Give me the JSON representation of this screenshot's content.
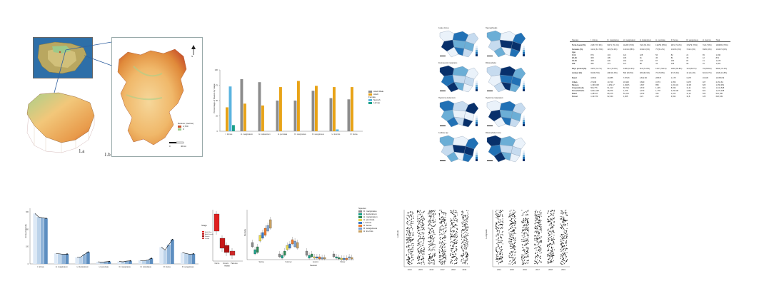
{
  "panel1": {
    "caption_a": "1.a",
    "caption_b": "1.b",
    "legend_title": "Relieve (metros)",
    "legend_high": "2,700",
    "legend_low": "0",
    "scale_zero": "0",
    "scale_unit": "40 km",
    "north": "N",
    "colors": {
      "sea": "#2e6fa8",
      "land": "#c9b36a",
      "low": "#f2c77a",
      "mid": "#e89a4a",
      "high": "#c8502a",
      "green": "#9cc98a"
    }
  },
  "panel2": {
    "ylabel": "Percentage of flowers by stage",
    "colors": {
      "adult_male": "#8c8c8c",
      "adult_female": "#e8a317",
      "nymph": "#5ab4e0",
      "larvae": "#1aa08a"
    },
    "legend": [
      "Adult Male",
      "Adult Female",
      "Nymph",
      "Larvae"
    ],
    "chart_data": {
      "type": "bar",
      "categories": [
        "I. ricinus",
        "H. marginatum",
        "H. lusitanicum",
        "H. punctata",
        "D. marginatus",
        "R. sanguineus",
        "H. inermis",
        "R. bursa"
      ],
      "series": [
        {
          "name": "Adult Male",
          "values": [
            0,
            85,
            80,
            50,
            50,
            66,
            54,
            52
          ]
        },
        {
          "name": "Adult Female",
          "values": [
            39,
            45,
            42,
            72,
            82,
            74,
            72,
            72
          ]
        },
        {
          "name": "Nymph",
          "values": [
            73,
            0,
            0,
            0,
            0,
            0,
            3,
            0
          ]
        },
        {
          "name": "Larvae",
          "values": [
            10,
            0,
            0,
            0,
            0,
            0,
            0,
            0
          ]
        }
      ],
      "ylim": [
        0,
        100
      ]
    }
  },
  "panel3": {
    "map_titles": [
      "Ixodes ricinus",
      "Haemaphysalis",
      "Dermacentor marginatus",
      "Rhipicephalus",
      "Hyalomma lusitanicum",
      "Hyalomma marginatum",
      "Ixodidae spp",
      "Rhipicephalus bursa"
    ],
    "shades": [
      "#eaf2fa",
      "#c6dbef",
      "#6baed6",
      "#2171b5",
      "#08306b"
    ]
  },
  "panel4": {
    "header": [
      "Species",
      "I. ricinus",
      "D. marginatus",
      "H. marginatum",
      "H. lusitanicum",
      "H. punctata",
      "R. bursa",
      "R. sanguineus",
      "H. inermis",
      "Total"
    ],
    "rows": [
      [
        "Ticks found (%)",
        "21/57 (67.9%)",
        "90/71 (71.1%)",
        "111/82 (70%)",
        "74/2 (61.9%)",
        "132/53 (95%)",
        "28/1 (71.3%)",
        "179/79 (79%)",
        "7/24 (70%)",
        "1009/83 (70%)"
      ],
      [
        "Females (%)",
        "111/1 (61.70%)",
        "119 (54.9%)",
        "141/14 (88%)",
        "101/24 (0%)",
        "75 (51.2%)",
        "131/51 (0%)",
        "71/21 (0%)",
        "69/64 (0%)",
        "1313/74 (0%)"
      ],
      [
        "Age",
        "",
        "",
        "",
        "",
        "",
        "",
        "",
        "",
        ""
      ],
      [
        "0-19",
        "874",
        "143",
        "121",
        "128",
        "56",
        "82",
        "21",
        "65",
        "1,090"
      ],
      [
        "20-39",
        "308",
        "195",
        "105",
        "91",
        "45",
        "81",
        "35",
        "12",
        "874"
      ],
      [
        "40-59",
        "408",
        "230",
        "162",
        "134",
        "87",
        "105",
        "81",
        "21",
        "1,078"
      ],
      [
        "≥60",
        "356",
        "174",
        "127",
        "88",
        "43",
        "148",
        "68",
        "15",
        "1,081"
      ],
      [
        "Days posted (%)",
        "1976 (71.7%)",
        "914 (79.6%)",
        "1468 (61.3%)",
        "913 (71.8%)",
        "1157 (79.4%)",
        "1664 (66.8%)",
        "124 (89.7%)",
        "79 (86.6%)",
        "9814 (76.4%)"
      ],
      [
        "Limited (%)",
        "93 (51.5%)",
        "298 (61.8%)",
        "593 (66.5%)",
        "180 (62.9%)",
        "76 (70.8%)",
        "97 (5.4%)",
        "19 (31.2%)",
        "60 (61.7%)",
        "1916 (13.8%)"
      ],
      [
        "Rural",
        "16,502",
        "10,685",
        "7,872.8",
        "4,812.82",
        "28,547",
        "1,178",
        "3,178",
        "16,036",
        "10,059.69"
      ],
      [
        "Urban",
        "27,298",
        "10,720",
        "16,925",
        "3,820",
        "3,673",
        "1,959",
        "3,478",
        "327",
        "2,251.64"
      ],
      [
        "Pasture",
        "1,366,608",
        "1,259.47",
        "1,849.5",
        "1,837",
        "858",
        "1,262.34",
        "19.08",
        "825",
        "1,056,951"
      ],
      [
        "Crops/shrubs",
        "504,776",
        "91,213",
        "60,719",
        "2,673",
        "1,245",
        "8,939",
        "11,21",
        "821",
        "1,641,528"
      ],
      [
        "Forest/shrubs",
        "6,812,108",
        "38,976",
        "1,076",
        "2,973",
        "1,778",
        "2,292.38",
        "1,692",
        "821",
        "1,637,348"
      ],
      [
        "Rural",
        "1,283.67",
        "68,275",
        "51,213",
        "2,152",
        "325",
        "1,102",
        "11,13",
        "524",
        "521,786"
      ],
      [
        "Forest",
        "1,427.83",
        "92,234",
        "1,825",
        "4,21",
        "223",
        "3,692",
        "16,8",
        "125",
        "626,349"
      ]
    ]
  },
  "panel5": {
    "ylabel": "Annual density",
    "categories": [
      "I. ricinus",
      "H. marginatum",
      "H. lusitanicum",
      "H. punctata",
      "D. marginatus",
      "D. reticulatus",
      "R. bursa",
      "R. sanguineus"
    ],
    "chart_data": {
      "type": "bar",
      "categories": [
        "I. ricinus",
        "H. marginatum",
        "H. lusitanicum",
        "H. punctata",
        "D. marginatus",
        "D. reticulatus",
        "R. bursa",
        "R. sanguineus"
      ],
      "series": [
        {
          "name": "Y1",
          "values": [
            290,
            60,
            38,
            12,
            14,
            20,
            96,
            65
          ]
        },
        {
          "name": "Y2",
          "values": [
            270,
            58,
            40,
            10,
            12,
            18,
            80,
            60
          ]
        },
        {
          "name": "Y3",
          "values": [
            265,
            55,
            55,
            12,
            16,
            22,
            110,
            55
          ]
        },
        {
          "name": "Y4",
          "values": [
            262,
            57,
            68,
            14,
            18,
            32,
            140,
            58
          ]
        }
      ],
      "ylim": [
        0,
        320
      ]
    },
    "colors": [
      "#dde9f6",
      "#bcd3ea",
      "#8fb3d8",
      "#5d8ec0"
    ]
  },
  "panel6": {
    "legend_title": "Stage",
    "legend_items": [
      "Adult Male",
      "Adult Female",
      "Nymph",
      "Larvae"
    ],
    "x_labels": [
      "Farms",
      "Forests",
      "Pastures"
    ],
    "xlabel": "Habitat",
    "colors": [
      "#e02020",
      "#c01818",
      "#a01010",
      "#d04040"
    ]
  },
  "panel7": {
    "ylabel": "Density",
    "xlabel": "Season",
    "legend_title": "Species",
    "legend_items": [
      "D. marginatus",
      "H. lusitanicum",
      "H. marginatum",
      "H. punctata",
      "I. ricinus",
      "R. bursa",
      "R. sanguineus",
      "H. inermis"
    ],
    "x_labels": [
      "Spring",
      "Summer",
      "Autumn",
      "Winter"
    ],
    "colors": [
      "#8c8c8c",
      "#1aa08a",
      "#2e8b57",
      "#e8d84a",
      "#3a78c8",
      "#f07a2a",
      "#7aa0d0",
      "#c8a060"
    ]
  },
  "panel8": {
    "ylabel": "Latitude",
    "x_labels": [
      "2014",
      "2015",
      "2016",
      "2017",
      "2018",
      "2019"
    ]
  },
  "panel9": {
    "ylabel": "Longitude",
    "x_labels": [
      "2014",
      "2015",
      "2016",
      "2017",
      "2018",
      "2019"
    ]
  }
}
